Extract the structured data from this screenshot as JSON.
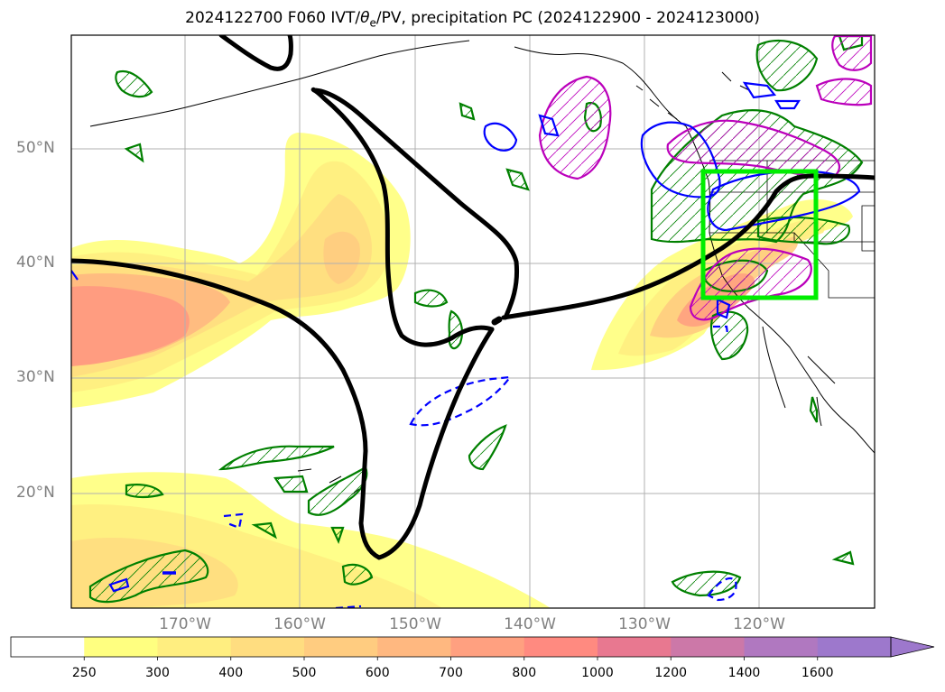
{
  "title": {
    "before": "2024122700 F060 IVT/",
    "theta": "θ",
    "sub": "e",
    "after": "/PV, precipitation PC (2024122900 - 2024123000)"
  },
  "axes": {
    "lat_ticks": [
      "50°N",
      "40°N",
      "30°N",
      "20°N"
    ],
    "lon_ticks": [
      "170°W",
      "160°W",
      "150°W",
      "140°W",
      "130°W",
      "120°W"
    ]
  },
  "colorbar": {
    "ticks": [
      "250",
      "300",
      "400",
      "500",
      "600",
      "700",
      "800",
      "1000",
      "1200",
      "1400",
      "1600"
    ],
    "colors": [
      "#ffff80",
      "#ffee80",
      "#ffdd80",
      "#ffcc80",
      "#ffb880",
      "#ffa080",
      "#ff8a80",
      "#e87890",
      "#cc78a8",
      "#b078c0",
      "#9d78cc"
    ],
    "extend": "max"
  },
  "colors": {
    "pv_contour": "#000000",
    "theta_e_positive": "#008000",
    "theta_e_negative": "#0000ff",
    "precip_contour": "#bb00bb",
    "target_box": "#00ee00",
    "grid": "#b0b0b0"
  }
}
